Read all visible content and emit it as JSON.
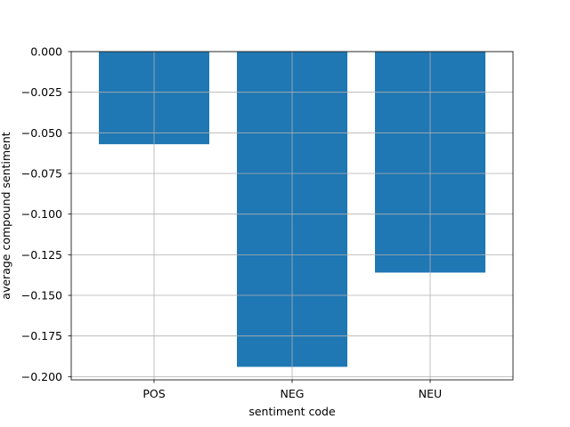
{
  "chart_data": {
    "type": "bar",
    "categories": [
      "POS",
      "NEG",
      "NEU"
    ],
    "values": [
      -0.057,
      -0.194,
      -0.136
    ],
    "title": "",
    "xlabel": "sentiment code",
    "ylabel": "average compound sentiment",
    "ylim": [
      -0.202,
      0.0
    ],
    "yticks": [
      0.0,
      -0.025,
      -0.05,
      -0.075,
      -0.1,
      -0.125,
      -0.15,
      -0.175,
      -0.2
    ],
    "ytick_labels": [
      "0.000",
      "−0.025",
      "−0.050",
      "−0.075",
      "−0.100",
      "−0.125",
      "−0.150",
      "−0.175",
      "−0.200"
    ],
    "grid": true,
    "bar_color": "#1f77b4"
  }
}
